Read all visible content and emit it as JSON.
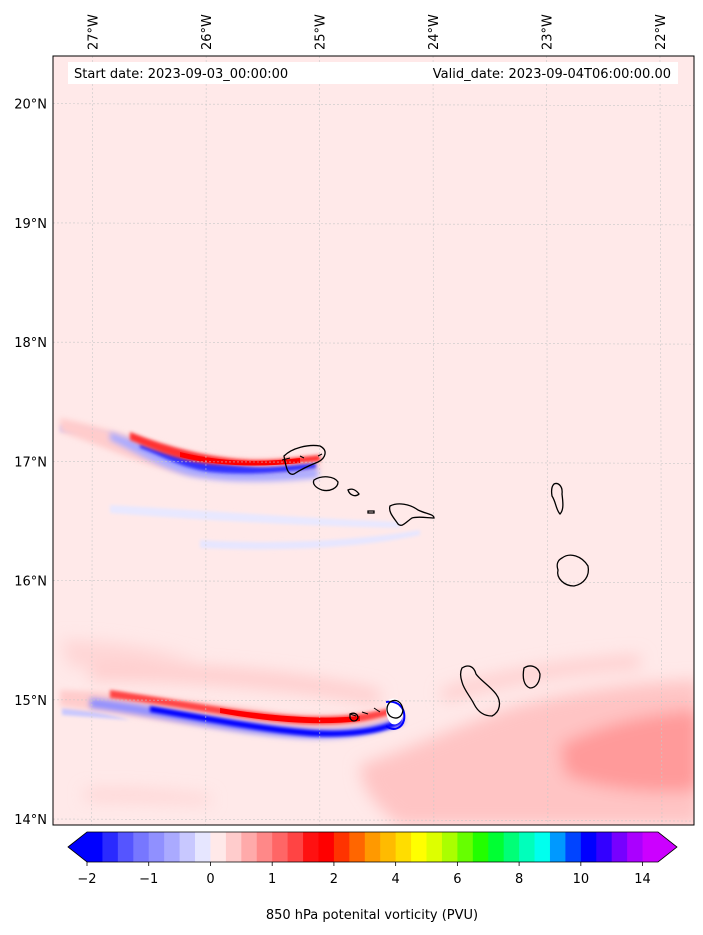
{
  "chart_data": {
    "type": "heatmap",
    "title": "",
    "annotations": {
      "start_date": "Start date: 2023-09-03_00:00:00",
      "valid_date": "Valid_date: 2023-09-04T06:00:00.00"
    },
    "x_ticks": [
      "27°W",
      "26°W",
      "25°W",
      "24°W",
      "23°W",
      "22°W"
    ],
    "x_tick_values": [
      -27,
      -26,
      -25,
      -24,
      -23,
      -22
    ],
    "y_ticks": [
      "20°N",
      "19°N",
      "18°N",
      "17°N",
      "16°N",
      "15°N",
      "14°N"
    ],
    "y_tick_values": [
      20,
      19,
      18,
      17,
      16,
      15,
      14
    ],
    "xlim": [
      -27.35,
      -21.7
    ],
    "ylim": [
      13.95,
      20.4
    ],
    "grid": true,
    "colorbar": {
      "label": "850 hPa potenital vorticity (PVU)",
      "tick_labels": [
        "−2",
        "−1",
        "0",
        "1",
        "2",
        "4",
        "6",
        "8",
        "10",
        "14"
      ],
      "levels": [
        -2,
        -1.75,
        -1.5,
        -1.25,
        -1,
        -0.75,
        -0.5,
        -0.25,
        0,
        0.25,
        0.5,
        0.75,
        1,
        1.25,
        1.5,
        1.75,
        2,
        2.5,
        3,
        3.5,
        4,
        4.5,
        5,
        5.5,
        6,
        6.5,
        7,
        7.5,
        8,
        8.5,
        9,
        9.5,
        10,
        11,
        12,
        13,
        14,
        15
      ],
      "colors": [
        "#0000ff",
        "#2a2aff",
        "#5555ff",
        "#7777ff",
        "#9090ff",
        "#aaaaff",
        "#c8c8ff",
        "#e6e6ff",
        "#ffe9e9",
        "#ffcccc",
        "#ffaaaa",
        "#ff8888",
        "#ff6666",
        "#ff4444",
        "#ff1111",
        "#ff0000",
        "#ff3300",
        "#ff6600",
        "#ff9900",
        "#ffbb00",
        "#ffdd00",
        "#ffff00",
        "#ddff00",
        "#aaff00",
        "#66ff00",
        "#22ff00",
        "#00ff33",
        "#00ff77",
        "#00ffbb",
        "#00ffee",
        "#0099ff",
        "#0044ff",
        "#0000ff",
        "#3300ff",
        "#7700ff",
        "#aa00ff",
        "#cc00ff"
      ],
      "extend": "both",
      "under_color": "#0000ff",
      "over_color": "#cc00ff"
    },
    "background_color": "#ffe9e9",
    "features": [
      {
        "name": "northern-dipole",
        "positive_color": "#ff0000",
        "negative_color": "#3333ff"
      },
      {
        "name": "southern-dipole",
        "positive_color": "#ff0000",
        "negative_color": "#0000ff"
      }
    ],
    "islands": [
      "Santo Antao",
      "Sao Vicente",
      "Santa Luzia",
      "Sao Nicolau",
      "Sal",
      "Boa Vista",
      "Maio",
      "Santiago",
      "Fogo",
      "Brava"
    ]
  }
}
